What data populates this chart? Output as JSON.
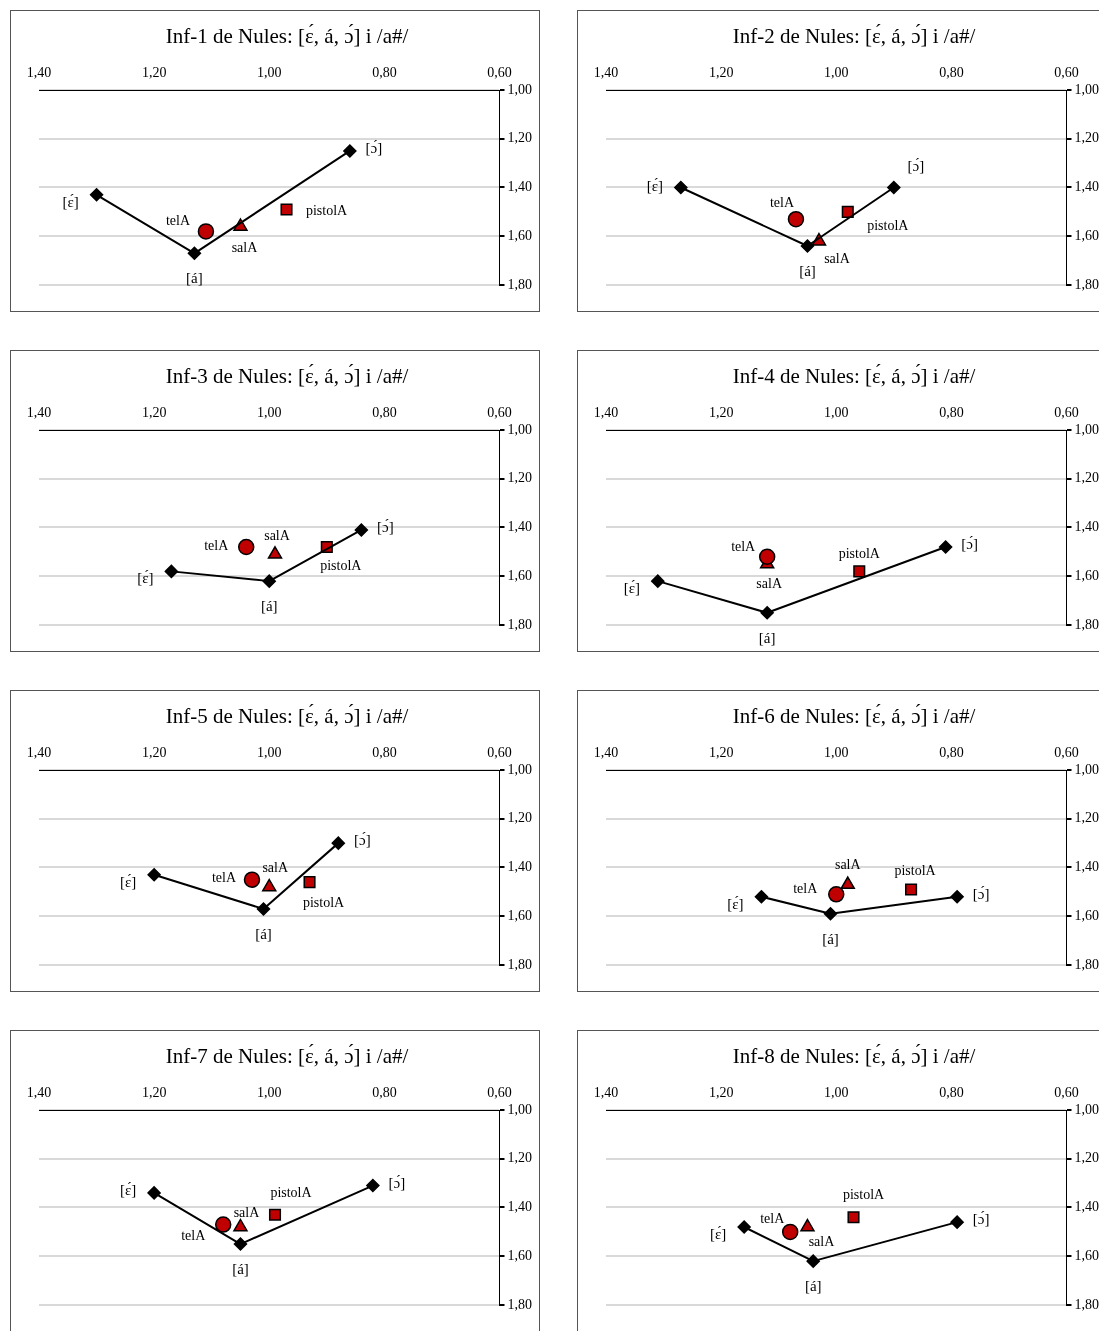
{
  "chart_data": [
    {
      "type": "scatter",
      "title": "Inf-1 de Nules: [ɛ́, á, ɔ́] i /a#/",
      "xlim": [
        1.4,
        0.6
      ],
      "ylim": [
        1.8,
        1.0
      ],
      "xticks": [
        {
          "value": 1.4,
          "label": "1,40"
        },
        {
          "value": 1.2,
          "label": "1,20"
        },
        {
          "value": 1.0,
          "label": "1,00"
        },
        {
          "value": 0.8,
          "label": "0,80"
        },
        {
          "value": 0.6,
          "label": "0,60"
        }
      ],
      "yticks": [
        {
          "value": 1.0,
          "label": "1,00"
        },
        {
          "value": 1.2,
          "label": "1,20"
        },
        {
          "value": 1.4,
          "label": "1,40"
        },
        {
          "value": 1.6,
          "label": "1,60"
        },
        {
          "value": 1.8,
          "label": "1,80"
        }
      ],
      "grid": "y",
      "series": [
        {
          "type": "line",
          "color": "#000000",
          "marker": "diamond",
          "x": [
            1.3,
            1.13,
            0.86
          ],
          "values": [
            1.43,
            1.67,
            1.25
          ]
        },
        {
          "name": "telA",
          "color": "#c00000",
          "marker": "circle",
          "x": [
            1.11
          ],
          "values": [
            1.58
          ]
        },
        {
          "name": "salA",
          "color": "#c00000",
          "marker": "triangle",
          "x": [
            1.05
          ],
          "values": [
            1.56
          ]
        },
        {
          "name": "pistolA",
          "color": "#c00000",
          "marker": "square",
          "x": [
            0.97
          ],
          "values": [
            1.49
          ]
        }
      ],
      "annotations": [
        {
          "text": "[ɛ́]",
          "x": 1.3,
          "y": 1.43
        },
        {
          "text": "[á]",
          "x": 1.13,
          "y": 1.67
        },
        {
          "text": "[ɔ́]",
          "x": 0.86,
          "y": 1.25
        }
      ]
    },
    {
      "type": "scatter",
      "title": "Inf-2 de Nules: [ɛ́, á, ɔ́] i /a#/",
      "xlim": [
        1.4,
        0.6
      ],
      "ylim": [
        1.8,
        1.0
      ],
      "xticks": [
        {
          "value": 1.4,
          "label": "1,40"
        },
        {
          "value": 1.2,
          "label": "1,20"
        },
        {
          "value": 1.0,
          "label": "1,00"
        },
        {
          "value": 0.8,
          "label": "0,80"
        },
        {
          "value": 0.6,
          "label": "0,60"
        }
      ],
      "yticks": [
        {
          "value": 1.0,
          "label": "1,00"
        },
        {
          "value": 1.2,
          "label": "1,20"
        },
        {
          "value": 1.4,
          "label": "1,40"
        },
        {
          "value": 1.6,
          "label": "1,60"
        },
        {
          "value": 1.8,
          "label": "1,80"
        }
      ],
      "grid": "y",
      "series": [
        {
          "type": "line",
          "color": "#000000",
          "marker": "diamond",
          "x": [
            1.27,
            1.05,
            0.9
          ],
          "values": [
            1.4,
            1.64,
            1.4
          ]
        },
        {
          "name": "telA",
          "color": "#c00000",
          "marker": "circle",
          "x": [
            1.07
          ],
          "values": [
            1.53
          ]
        },
        {
          "name": "salA",
          "color": "#c00000",
          "marker": "triangle",
          "x": [
            1.03
          ],
          "values": [
            1.62
          ]
        },
        {
          "name": "pistolA",
          "color": "#c00000",
          "marker": "square",
          "x": [
            0.98
          ],
          "values": [
            1.5
          ]
        }
      ],
      "annotations": [
        {
          "text": "[ɛ́]",
          "x": 1.27,
          "y": 1.4
        },
        {
          "text": "[á]",
          "x": 1.05,
          "y": 1.64
        },
        {
          "text": "[ɔ́]",
          "x": 0.9,
          "y": 1.4
        }
      ]
    },
    {
      "type": "scatter",
      "title": "Inf-3 de Nules: [ɛ́, á, ɔ́] i /a#/",
      "xlim": [
        1.4,
        0.6
      ],
      "ylim": [
        1.8,
        1.0
      ],
      "xticks": [
        {
          "value": 1.4,
          "label": "1,40"
        },
        {
          "value": 1.2,
          "label": "1,20"
        },
        {
          "value": 1.0,
          "label": "1,00"
        },
        {
          "value": 0.8,
          "label": "0,80"
        },
        {
          "value": 0.6,
          "label": "0,60"
        }
      ],
      "yticks": [
        {
          "value": 1.0,
          "label": "1,00"
        },
        {
          "value": 1.2,
          "label": "1,20"
        },
        {
          "value": 1.4,
          "label": "1,40"
        },
        {
          "value": 1.6,
          "label": "1,60"
        },
        {
          "value": 1.8,
          "label": "1,80"
        }
      ],
      "grid": "y",
      "series": [
        {
          "type": "line",
          "color": "#000000",
          "marker": "diamond",
          "x": [
            1.17,
            1.0,
            0.84
          ],
          "values": [
            1.58,
            1.62,
            1.41
          ]
        },
        {
          "name": "telA",
          "color": "#c00000",
          "marker": "circle",
          "x": [
            1.04
          ],
          "values": [
            1.48
          ]
        },
        {
          "name": "salA",
          "color": "#c00000",
          "marker": "triangle",
          "x": [
            0.99
          ],
          "values": [
            1.51
          ]
        },
        {
          "name": "pistolA",
          "color": "#c00000",
          "marker": "square",
          "x": [
            0.9
          ],
          "values": [
            1.48
          ]
        }
      ],
      "annotations": [
        {
          "text": "[ɛ́]",
          "x": 1.17,
          "y": 1.58
        },
        {
          "text": "[á]",
          "x": 1.0,
          "y": 1.62
        },
        {
          "text": "[ɔ́]",
          "x": 0.84,
          "y": 1.41
        }
      ]
    },
    {
      "type": "scatter",
      "title": "Inf-4 de Nules: [ɛ́, á, ɔ́] i /a#/",
      "xlim": [
        1.4,
        0.6
      ],
      "ylim": [
        1.8,
        1.0
      ],
      "xticks": [
        {
          "value": 1.4,
          "label": "1,40"
        },
        {
          "value": 1.2,
          "label": "1,20"
        },
        {
          "value": 1.0,
          "label": "1,00"
        },
        {
          "value": 0.8,
          "label": "0,80"
        },
        {
          "value": 0.6,
          "label": "0,60"
        }
      ],
      "yticks": [
        {
          "value": 1.0,
          "label": "1,00"
        },
        {
          "value": 1.2,
          "label": "1,20"
        },
        {
          "value": 1.4,
          "label": "1,40"
        },
        {
          "value": 1.6,
          "label": "1,60"
        },
        {
          "value": 1.8,
          "label": "1,80"
        }
      ],
      "grid": "y",
      "series": [
        {
          "type": "line",
          "color": "#000000",
          "marker": "diamond",
          "x": [
            1.31,
            1.12,
            0.81
          ],
          "values": [
            1.62,
            1.75,
            1.48
          ]
        },
        {
          "name": "telA",
          "color": "#c00000",
          "marker": "circle",
          "x": [
            1.12
          ],
          "values": [
            1.52
          ]
        },
        {
          "name": "salA",
          "color": "#c00000",
          "marker": "triangle",
          "x": [
            1.12
          ],
          "values": [
            1.55
          ]
        },
        {
          "name": "pistolA",
          "color": "#c00000",
          "marker": "square",
          "x": [
            0.96
          ],
          "values": [
            1.58
          ]
        }
      ],
      "annotations": [
        {
          "text": "[ɛ́]",
          "x": 1.31,
          "y": 1.62
        },
        {
          "text": "[á]",
          "x": 1.12,
          "y": 1.75
        },
        {
          "text": "[ɔ́]",
          "x": 0.81,
          "y": 1.48
        }
      ]
    },
    {
      "type": "scatter",
      "title": "Inf-5 de Nules: [ɛ́, á, ɔ́] i /a#/",
      "xlim": [
        1.4,
        0.6
      ],
      "ylim": [
        1.8,
        1.0
      ],
      "xticks": [
        {
          "value": 1.4,
          "label": "1,40"
        },
        {
          "value": 1.2,
          "label": "1,20"
        },
        {
          "value": 1.0,
          "label": "1,00"
        },
        {
          "value": 0.8,
          "label": "0,80"
        },
        {
          "value": 0.6,
          "label": "0,60"
        }
      ],
      "yticks": [
        {
          "value": 1.0,
          "label": "1,00"
        },
        {
          "value": 1.2,
          "label": "1,20"
        },
        {
          "value": 1.4,
          "label": "1,40"
        },
        {
          "value": 1.6,
          "label": "1,60"
        },
        {
          "value": 1.8,
          "label": "1,80"
        }
      ],
      "grid": "y",
      "series": [
        {
          "type": "line",
          "color": "#000000",
          "marker": "diamond",
          "x": [
            1.2,
            1.01,
            0.88
          ],
          "values": [
            1.43,
            1.57,
            1.3
          ]
        },
        {
          "name": "telA",
          "color": "#c00000",
          "marker": "circle",
          "x": [
            1.03
          ],
          "values": [
            1.45
          ]
        },
        {
          "name": "salA",
          "color": "#c00000",
          "marker": "triangle",
          "x": [
            1.0
          ],
          "values": [
            1.48
          ]
        },
        {
          "name": "pistolA",
          "color": "#c00000",
          "marker": "square",
          "x": [
            0.93
          ],
          "values": [
            1.46
          ]
        }
      ],
      "annotations": [
        {
          "text": "[ɛ́]",
          "x": 1.2,
          "y": 1.43
        },
        {
          "text": "[á]",
          "x": 1.01,
          "y": 1.57
        },
        {
          "text": "[ɔ́]",
          "x": 0.88,
          "y": 1.3
        }
      ]
    },
    {
      "type": "scatter",
      "title": "Inf-6 de Nules: [ɛ́, á, ɔ́] i /a#/",
      "xlim": [
        1.4,
        0.6
      ],
      "ylim": [
        1.8,
        1.0
      ],
      "xticks": [
        {
          "value": 1.4,
          "label": "1,40"
        },
        {
          "value": 1.2,
          "label": "1,20"
        },
        {
          "value": 1.0,
          "label": "1,00"
        },
        {
          "value": 0.8,
          "label": "0,80"
        },
        {
          "value": 0.6,
          "label": "0,60"
        }
      ],
      "yticks": [
        {
          "value": 1.0,
          "label": "1,00"
        },
        {
          "value": 1.2,
          "label": "1,20"
        },
        {
          "value": 1.4,
          "label": "1,40"
        },
        {
          "value": 1.6,
          "label": "1,60"
        },
        {
          "value": 1.8,
          "label": "1,80"
        }
      ],
      "grid": "y",
      "series": [
        {
          "type": "line",
          "color": "#000000",
          "marker": "diamond",
          "x": [
            1.13,
            1.01,
            0.79
          ],
          "values": [
            1.52,
            1.59,
            1.52
          ]
        },
        {
          "name": "telA",
          "color": "#c00000",
          "marker": "circle",
          "x": [
            1.0
          ],
          "values": [
            1.51
          ]
        },
        {
          "name": "salA",
          "color": "#c00000",
          "marker": "triangle",
          "x": [
            0.98
          ],
          "values": [
            1.47
          ]
        },
        {
          "name": "pistolA",
          "color": "#c00000",
          "marker": "square",
          "x": [
            0.87
          ],
          "values": [
            1.49
          ]
        }
      ],
      "annotations": [
        {
          "text": "[ɛ́]",
          "x": 1.13,
          "y": 1.52
        },
        {
          "text": "[á]",
          "x": 1.01,
          "y": 1.59
        },
        {
          "text": "[ɔ́]",
          "x": 0.79,
          "y": 1.52
        }
      ]
    },
    {
      "type": "scatter",
      "title": "Inf-7 de Nules: [ɛ́, á, ɔ́] i /a#/",
      "xlim": [
        1.4,
        0.6
      ],
      "ylim": [
        1.8,
        1.0
      ],
      "xticks": [
        {
          "value": 1.4,
          "label": "1,40"
        },
        {
          "value": 1.2,
          "label": "1,20"
        },
        {
          "value": 1.0,
          "label": "1,00"
        },
        {
          "value": 0.8,
          "label": "0,80"
        },
        {
          "value": 0.6,
          "label": "0,60"
        }
      ],
      "yticks": [
        {
          "value": 1.0,
          "label": "1,00"
        },
        {
          "value": 1.2,
          "label": "1,20"
        },
        {
          "value": 1.4,
          "label": "1,40"
        },
        {
          "value": 1.6,
          "label": "1,60"
        },
        {
          "value": 1.8,
          "label": "1,80"
        }
      ],
      "grid": "y",
      "series": [
        {
          "type": "line",
          "color": "#000000",
          "marker": "diamond",
          "x": [
            1.2,
            1.05,
            0.82
          ],
          "values": [
            1.34,
            1.55,
            1.31
          ]
        },
        {
          "name": "telA",
          "color": "#c00000",
          "marker": "circle",
          "x": [
            1.08
          ],
          "values": [
            1.47
          ]
        },
        {
          "name": "salA",
          "color": "#c00000",
          "marker": "triangle",
          "x": [
            1.05
          ],
          "values": [
            1.48
          ]
        },
        {
          "name": "pistolA",
          "color": "#c00000",
          "marker": "square",
          "x": [
            0.99
          ],
          "values": [
            1.43
          ]
        }
      ],
      "annotations": [
        {
          "text": "[ɛ́]",
          "x": 1.2,
          "y": 1.34
        },
        {
          "text": "[á]",
          "x": 1.05,
          "y": 1.55
        },
        {
          "text": "[ɔ́]",
          "x": 0.82,
          "y": 1.31
        }
      ]
    },
    {
      "type": "scatter",
      "title": "Inf-8 de Nules: [ɛ́, á, ɔ́] i /a#/",
      "xlim": [
        1.4,
        0.6
      ],
      "ylim": [
        1.8,
        1.0
      ],
      "xticks": [
        {
          "value": 1.4,
          "label": "1,40"
        },
        {
          "value": 1.2,
          "label": "1,20"
        },
        {
          "value": 1.0,
          "label": "1,00"
        },
        {
          "value": 0.8,
          "label": "0,80"
        },
        {
          "value": 0.6,
          "label": "0,60"
        }
      ],
      "yticks": [
        {
          "value": 1.0,
          "label": "1,00"
        },
        {
          "value": 1.2,
          "label": "1,20"
        },
        {
          "value": 1.4,
          "label": "1,40"
        },
        {
          "value": 1.6,
          "label": "1,60"
        },
        {
          "value": 1.8,
          "label": "1,80"
        }
      ],
      "grid": "y",
      "series": [
        {
          "type": "line",
          "color": "#000000",
          "marker": "diamond",
          "x": [
            1.16,
            1.04,
            0.79
          ],
          "values": [
            1.48,
            1.62,
            1.46
          ]
        },
        {
          "name": "telA",
          "color": "#c00000",
          "marker": "circle",
          "x": [
            1.08
          ],
          "values": [
            1.5
          ]
        },
        {
          "name": "salA",
          "color": "#c00000",
          "marker": "triangle",
          "x": [
            1.05
          ],
          "values": [
            1.48
          ]
        },
        {
          "name": "pistolA",
          "color": "#c00000",
          "marker": "square",
          "x": [
            0.97
          ],
          "values": [
            1.44
          ]
        }
      ],
      "annotations": [
        {
          "text": "[ɛ́]",
          "x": 1.16,
          "y": 1.48
        },
        {
          "text": "[á]",
          "x": 1.04,
          "y": 1.62
        },
        {
          "text": "[ɔ́]",
          "x": 0.79,
          "y": 1.46
        }
      ]
    }
  ]
}
